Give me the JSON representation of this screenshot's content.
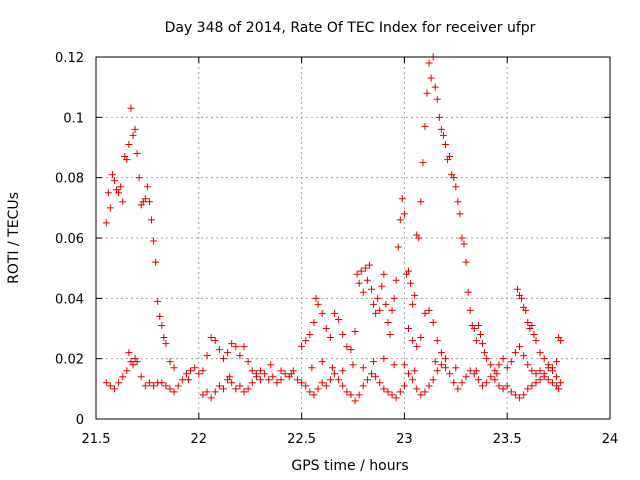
{
  "chart_data": {
    "type": "scatter",
    "title": "Day 348 of 2014, Rate Of TEC Index for receiver ufpr",
    "xlabel": "GPS time / hours",
    "ylabel": "ROTI / TECUs",
    "xlim": [
      21.5,
      24
    ],
    "ylim": [
      0,
      0.12
    ],
    "xticks": [
      21.5,
      22,
      22.5,
      23,
      23.5,
      24
    ],
    "xtick_labels": [
      "21.5",
      "22",
      "22.5",
      "23",
      "23.5",
      "24"
    ],
    "yticks": [
      0,
      0.02,
      0.04,
      0.06,
      0.08,
      0.1,
      0.12
    ],
    "ytick_labels": [
      "0",
      "0.02",
      "0.04",
      "0.06",
      "0.08",
      "0.1",
      "0.12"
    ],
    "grid": true,
    "marker": "+",
    "color": "#e00000",
    "series": [
      {
        "name": "ROTI",
        "points": [
          [
            21.55,
            0.065
          ],
          [
            21.56,
            0.075
          ],
          [
            21.57,
            0.07
          ],
          [
            21.58,
            0.081
          ],
          [
            21.59,
            0.079
          ],
          [
            21.6,
            0.076
          ],
          [
            21.61,
            0.075
          ],
          [
            21.62,
            0.077
          ],
          [
            21.63,
            0.072
          ],
          [
            21.64,
            0.087
          ],
          [
            21.65,
            0.086
          ],
          [
            21.66,
            0.091
          ],
          [
            21.67,
            0.103
          ],
          [
            21.68,
            0.094
          ],
          [
            21.69,
            0.096
          ],
          [
            21.7,
            0.088
          ],
          [
            21.71,
            0.08
          ],
          [
            21.72,
            0.071
          ],
          [
            21.73,
            0.072
          ],
          [
            21.74,
            0.073
          ],
          [
            21.75,
            0.077
          ],
          [
            21.76,
            0.072
          ],
          [
            21.77,
            0.066
          ],
          [
            21.78,
            0.059
          ],
          [
            21.79,
            0.052
          ],
          [
            21.8,
            0.039
          ],
          [
            21.81,
            0.034
          ],
          [
            21.82,
            0.031
          ],
          [
            21.83,
            0.027
          ],
          [
            21.84,
            0.025
          ],
          [
            21.86,
            0.019
          ],
          [
            21.88,
            0.017
          ],
          [
            21.55,
            0.012
          ],
          [
            21.57,
            0.011
          ],
          [
            21.59,
            0.01
          ],
          [
            21.61,
            0.012
          ],
          [
            21.63,
            0.014
          ],
          [
            21.65,
            0.016
          ],
          [
            21.66,
            0.022
          ],
          [
            21.67,
            0.019
          ],
          [
            21.68,
            0.018
          ],
          [
            21.69,
            0.02
          ],
          [
            21.7,
            0.019
          ],
          [
            21.72,
            0.014
          ],
          [
            21.74,
            0.011
          ],
          [
            21.76,
            0.012
          ],
          [
            21.78,
            0.011
          ],
          [
            21.8,
            0.012
          ],
          [
            21.82,
            0.012
          ],
          [
            21.84,
            0.011
          ],
          [
            21.86,
            0.01
          ],
          [
            21.88,
            0.009
          ],
          [
            21.9,
            0.011
          ],
          [
            21.92,
            0.013
          ],
          [
            21.94,
            0.015
          ],
          [
            21.96,
            0.016
          ],
          [
            21.98,
            0.017
          ],
          [
            22.0,
            0.015
          ],
          [
            22.02,
            0.016
          ],
          [
            22.04,
            0.021
          ],
          [
            22.06,
            0.027
          ],
          [
            22.08,
            0.026
          ],
          [
            22.1,
            0.023
          ],
          [
            22.12,
            0.02
          ],
          [
            22.14,
            0.022
          ],
          [
            22.16,
            0.025
          ],
          [
            22.18,
            0.024
          ],
          [
            22.2,
            0.021
          ],
          [
            22.22,
            0.024
          ],
          [
            22.24,
            0.019
          ],
          [
            22.26,
            0.016
          ],
          [
            22.28,
            0.015
          ],
          [
            22.02,
            0.008
          ],
          [
            22.04,
            0.009
          ],
          [
            22.06,
            0.007
          ],
          [
            22.08,
            0.009
          ],
          [
            22.1,
            0.011
          ],
          [
            22.12,
            0.01
          ],
          [
            22.14,
            0.013
          ],
          [
            22.16,
            0.012
          ],
          [
            22.18,
            0.01
          ],
          [
            22.2,
            0.011
          ],
          [
            22.22,
            0.009
          ],
          [
            22.24,
            0.01
          ],
          [
            22.26,
            0.012
          ],
          [
            22.28,
            0.014
          ],
          [
            22.3,
            0.013
          ],
          [
            22.32,
            0.015
          ],
          [
            22.34,
            0.013
          ],
          [
            22.36,
            0.014
          ],
          [
            22.38,
            0.012
          ],
          [
            22.4,
            0.013
          ],
          [
            22.42,
            0.015
          ],
          [
            22.44,
            0.014
          ],
          [
            22.46,
            0.016
          ],
          [
            22.48,
            0.013
          ],
          [
            22.5,
            0.012
          ],
          [
            22.52,
            0.011
          ],
          [
            22.54,
            0.009
          ],
          [
            22.56,
            0.008
          ],
          [
            22.58,
            0.01
          ],
          [
            22.6,
            0.012
          ],
          [
            22.62,
            0.011
          ],
          [
            22.64,
            0.013
          ],
          [
            22.66,
            0.015
          ],
          [
            22.68,
            0.013
          ],
          [
            22.7,
            0.011
          ],
          [
            22.72,
            0.009
          ],
          [
            22.74,
            0.008
          ],
          [
            22.76,
            0.006
          ],
          [
            22.78,
            0.008
          ],
          [
            22.8,
            0.011
          ],
          [
            22.82,
            0.013
          ],
          [
            22.84,
            0.015
          ],
          [
            22.86,
            0.014
          ],
          [
            22.88,
            0.012
          ],
          [
            22.9,
            0.01
          ],
          [
            22.92,
            0.009
          ],
          [
            22.94,
            0.008
          ],
          [
            22.96,
            0.007
          ],
          [
            22.98,
            0.009
          ],
          [
            23.0,
            0.011
          ],
          [
            22.5,
            0.024
          ],
          [
            22.52,
            0.026
          ],
          [
            22.54,
            0.028
          ],
          [
            22.56,
            0.032
          ],
          [
            22.57,
            0.04
          ],
          [
            22.58,
            0.038
          ],
          [
            22.6,
            0.035
          ],
          [
            22.62,
            0.03
          ],
          [
            22.64,
            0.027
          ],
          [
            22.66,
            0.035
          ],
          [
            22.68,
            0.033
          ],
          [
            22.7,
            0.028
          ],
          [
            22.72,
            0.024
          ],
          [
            22.74,
            0.023
          ],
          [
            22.76,
            0.029
          ],
          [
            22.77,
            0.048
          ],
          [
            22.78,
            0.045
          ],
          [
            22.79,
            0.049
          ],
          [
            22.8,
            0.042
          ],
          [
            22.81,
            0.05
          ],
          [
            22.82,
            0.046
          ],
          [
            22.83,
            0.051
          ],
          [
            22.84,
            0.043
          ],
          [
            22.85,
            0.038
          ],
          [
            22.86,
            0.035
          ],
          [
            22.87,
            0.04
          ],
          [
            22.88,
            0.036
          ],
          [
            22.89,
            0.044
          ],
          [
            22.9,
            0.048
          ],
          [
            22.91,
            0.038
          ],
          [
            22.92,
            0.032
          ],
          [
            22.93,
            0.028
          ],
          [
            22.94,
            0.036
          ],
          [
            22.95,
            0.04
          ],
          [
            22.96,
            0.046
          ],
          [
            22.97,
            0.057
          ],
          [
            22.98,
            0.066
          ],
          [
            22.99,
            0.073
          ],
          [
            23.0,
            0.068
          ],
          [
            23.01,
            0.048
          ],
          [
            23.02,
            0.049
          ],
          [
            23.03,
            0.045
          ],
          [
            23.04,
            0.038
          ],
          [
            23.05,
            0.041
          ],
          [
            23.06,
            0.061
          ],
          [
            23.07,
            0.06
          ],
          [
            23.08,
            0.072
          ],
          [
            23.09,
            0.085
          ],
          [
            23.1,
            0.097
          ],
          [
            23.11,
            0.108
          ],
          [
            23.12,
            0.118
          ],
          [
            23.13,
            0.113
          ],
          [
            23.14,
            0.12
          ],
          [
            23.15,
            0.11
          ],
          [
            23.16,
            0.106
          ],
          [
            23.17,
            0.1
          ],
          [
            23.18,
            0.096
          ],
          [
            23.19,
            0.094
          ],
          [
            23.2,
            0.091
          ],
          [
            23.21,
            0.086
          ],
          [
            23.22,
            0.087
          ],
          [
            23.23,
            0.081
          ],
          [
            23.24,
            0.08
          ],
          [
            23.25,
            0.077
          ],
          [
            23.26,
            0.072
          ],
          [
            23.27,
            0.068
          ],
          [
            23.28,
            0.06
          ],
          [
            23.29,
            0.058
          ],
          [
            23.3,
            0.052
          ],
          [
            23.31,
            0.042
          ],
          [
            23.32,
            0.036
          ],
          [
            23.33,
            0.031
          ],
          [
            23.34,
            0.03
          ],
          [
            23.35,
            0.026
          ],
          [
            23.36,
            0.031
          ],
          [
            23.37,
            0.028
          ],
          [
            23.38,
            0.025
          ],
          [
            23.39,
            0.022
          ],
          [
            23.4,
            0.02
          ],
          [
            23.42,
            0.018
          ],
          [
            23.02,
            0.03
          ],
          [
            23.04,
            0.026
          ],
          [
            23.06,
            0.024
          ],
          [
            23.08,
            0.027
          ],
          [
            23.1,
            0.035
          ],
          [
            23.12,
            0.036
          ],
          [
            23.14,
            0.032
          ],
          [
            23.16,
            0.026
          ],
          [
            23.18,
            0.022
          ],
          [
            23.2,
            0.02
          ],
          [
            23.0,
            0.018
          ],
          [
            23.02,
            0.015
          ],
          [
            23.04,
            0.013
          ],
          [
            23.06,
            0.01
          ],
          [
            23.08,
            0.008
          ],
          [
            23.1,
            0.009
          ],
          [
            23.12,
            0.011
          ],
          [
            23.14,
            0.013
          ],
          [
            23.16,
            0.016
          ],
          [
            23.18,
            0.018
          ],
          [
            23.2,
            0.017
          ],
          [
            23.22,
            0.015
          ],
          [
            23.24,
            0.012
          ],
          [
            23.26,
            0.01
          ],
          [
            23.28,
            0.012
          ],
          [
            23.3,
            0.014
          ],
          [
            23.32,
            0.016
          ],
          [
            23.34,
            0.015
          ],
          [
            23.36,
            0.013
          ],
          [
            23.38,
            0.011
          ],
          [
            23.4,
            0.012
          ],
          [
            23.42,
            0.014
          ],
          [
            23.44,
            0.013
          ],
          [
            23.46,
            0.011
          ],
          [
            23.48,
            0.01
          ],
          [
            23.5,
            0.011
          ],
          [
            23.52,
            0.009
          ],
          [
            23.54,
            0.008
          ],
          [
            23.56,
            0.007
          ],
          [
            23.58,
            0.008
          ],
          [
            23.6,
            0.01
          ],
          [
            23.62,
            0.011
          ],
          [
            23.64,
            0.012
          ],
          [
            23.66,
            0.013
          ],
          [
            23.68,
            0.014
          ],
          [
            23.7,
            0.013
          ],
          [
            23.72,
            0.012
          ],
          [
            23.74,
            0.011
          ],
          [
            23.75,
            0.01
          ],
          [
            23.55,
            0.043
          ],
          [
            23.56,
            0.041
          ],
          [
            23.57,
            0.04
          ],
          [
            23.58,
            0.037
          ],
          [
            23.59,
            0.036
          ],
          [
            23.6,
            0.032
          ],
          [
            23.61,
            0.03
          ],
          [
            23.62,
            0.031
          ],
          [
            23.63,
            0.028
          ],
          [
            23.64,
            0.026
          ],
          [
            23.66,
            0.022
          ],
          [
            23.68,
            0.02
          ],
          [
            23.7,
            0.018
          ],
          [
            23.72,
            0.017
          ],
          [
            23.74,
            0.019
          ],
          [
            23.75,
            0.027
          ],
          [
            23.76,
            0.026
          ],
          [
            23.44,
            0.016
          ],
          [
            23.46,
            0.018
          ],
          [
            23.48,
            0.02
          ],
          [
            23.5,
            0.017
          ],
          [
            23.52,
            0.019
          ],
          [
            23.54,
            0.022
          ],
          [
            23.56,
            0.024
          ],
          [
            23.58,
            0.021
          ],
          [
            23.6,
            0.018
          ],
          [
            23.62,
            0.016
          ],
          [
            23.64,
            0.015
          ],
          [
            23.66,
            0.016
          ],
          [
            23.68,
            0.015
          ],
          [
            23.7,
            0.017
          ],
          [
            23.72,
            0.016
          ],
          [
            23.74,
            0.014
          ],
          [
            23.76,
            0.012
          ],
          [
            22.3,
            0.016
          ],
          [
            22.35,
            0.018
          ],
          [
            22.4,
            0.016
          ],
          [
            22.45,
            0.015
          ],
          [
            22.55,
            0.017
          ],
          [
            22.6,
            0.019
          ],
          [
            22.65,
            0.017
          ],
          [
            22.7,
            0.016
          ],
          [
            22.75,
            0.018
          ],
          [
            22.8,
            0.017
          ],
          [
            22.85,
            0.019
          ],
          [
            22.9,
            0.02
          ],
          [
            22.95,
            0.018
          ],
          [
            23.05,
            0.016
          ],
          [
            23.15,
            0.019
          ],
          [
            23.25,
            0.017
          ],
          [
            23.35,
            0.016
          ],
          [
            23.45,
            0.015
          ],
          [
            22.15,
            0.014
          ],
          [
            21.95,
            0.013
          ]
        ]
      }
    ]
  }
}
